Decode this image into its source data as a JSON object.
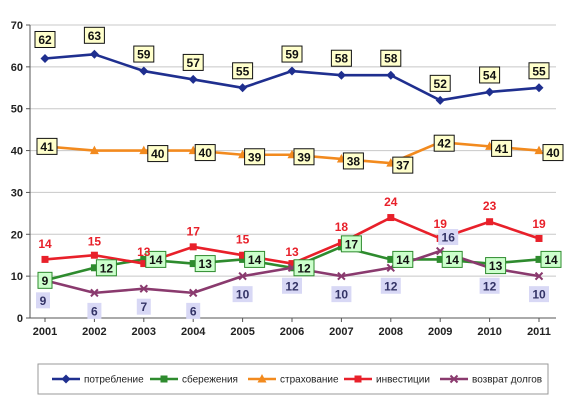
{
  "chart_data": {
    "type": "line",
    "title": "",
    "xlabel": "",
    "ylabel": "",
    "x": [
      "2001",
      "2002",
      "2003",
      "2004",
      "2005",
      "2006",
      "2007",
      "2008",
      "2009",
      "2010",
      "2011"
    ],
    "ylim": [
      0,
      70
    ],
    "yticks": [
      "0",
      "10",
      "20",
      "30",
      "40",
      "50",
      "60",
      "70"
    ],
    "grid": true,
    "legend_position": "bottom",
    "series": [
      {
        "name": "потребление",
        "color": "#1f2f8f",
        "marker": "diamond",
        "values": [
          62,
          63,
          59,
          57,
          55,
          59,
          58,
          58,
          52,
          54,
          55
        ],
        "labels": [
          "62",
          "63",
          "59",
          "57",
          "55",
          "59",
          "58",
          "58",
          "52",
          "54",
          "55"
        ],
        "label_box": "#ffffcc",
        "label_color": "#111111",
        "label_border": "#111111"
      },
      {
        "name": "сбережения",
        "color": "#2e8b2e",
        "marker": "square",
        "values": [
          9,
          12,
          14,
          13,
          14,
          12,
          17,
          14,
          14,
          13,
          14
        ],
        "labels": [
          "9",
          "12",
          "14",
          "13",
          "14",
          "12",
          "17",
          "14",
          "14",
          "13",
          "14"
        ],
        "label_box": "#ccffcc",
        "label_color": "#111111",
        "label_border": "#2e8b2e"
      },
      {
        "name": "страхование",
        "color": "#f28a1e",
        "marker": "triangle",
        "values": [
          41,
          40,
          40,
          40,
          39,
          39,
          38,
          37,
          42,
          41,
          40
        ],
        "labels": [
          "41",
          "",
          "40",
          "40",
          "39",
          "39",
          "38",
          "37",
          "42",
          "41",
          "40"
        ],
        "label_box": "#ffffcc",
        "label_color": "#111111",
        "label_border": "#111111"
      },
      {
        "name": "инвестиции",
        "color": "#e8202a",
        "marker": "square",
        "values": [
          14,
          15,
          13,
          17,
          15,
          13,
          18,
          24,
          19,
          23,
          19
        ],
        "labels": [
          "14",
          "15",
          "13",
          "17",
          "15",
          "13",
          "18",
          "24",
          "19",
          "23",
          "19"
        ],
        "label_box": "none",
        "label_color": "#e8202a",
        "label_border": "none"
      },
      {
        "name": "возврат долгов",
        "color": "#8a3a6e",
        "marker": "x",
        "values": [
          9,
          6,
          7,
          6,
          10,
          12,
          10,
          12,
          16,
          12,
          10
        ],
        "labels": [
          "9",
          "6",
          "7",
          "6",
          "10",
          "12",
          "10",
          "12",
          "16",
          "12",
          "10"
        ],
        "label_box": "#d8d8f5",
        "label_color": "#333366",
        "label_border": "none"
      }
    ]
  }
}
